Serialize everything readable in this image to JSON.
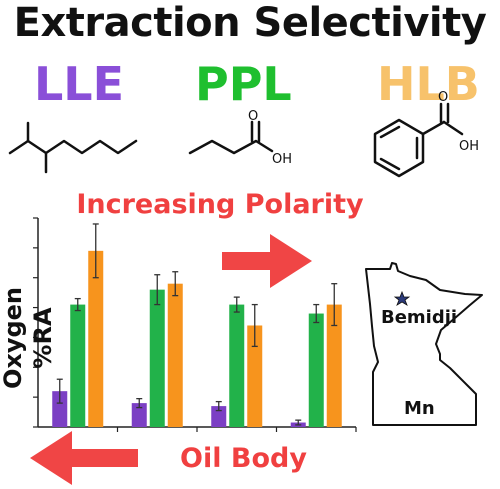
{
  "title": "Extraction Selectivity",
  "methods": [
    {
      "label": "LLE",
      "color": "#8a4fd8",
      "molecule": "branched-alkane"
    },
    {
      "label": "PPL",
      "color": "#1fbf2f",
      "molecule": "butanoic-acid"
    },
    {
      "label": "HLB",
      "color": "#f7c26b",
      "molecule": "benzoic-acid"
    }
  ],
  "molecule_atoms": {
    "oxygen": "O",
    "hydroxyl": "OH"
  },
  "polarity_label": "Increasing Polarity",
  "oil_body_label": "Oil Body",
  "map": {
    "city": "Bemidji",
    "state": "Mn",
    "marker_icon": "star-icon"
  },
  "chart_data": {
    "type": "bar",
    "ylabel": "Oxygen %RA",
    "xlabel": "",
    "categories": [
      "",
      "",
      "",
      ""
    ],
    "ylim": [
      0,
      70
    ],
    "grid": false,
    "series": [
      {
        "name": "LLE",
        "color": "#7b3fc4",
        "values": [
          12,
          8,
          7,
          1.5
        ],
        "errors": [
          4,
          1.5,
          1.5,
          0.8
        ]
      },
      {
        "name": "PPL",
        "color": "#22b24a",
        "values": [
          41,
          46,
          41,
          38
        ],
        "errors": [
          2,
          5,
          2.5,
          3
        ]
      },
      {
        "name": "HLB",
        "color": "#f7941d",
        "values": [
          59,
          48,
          34,
          41
        ],
        "errors": [
          9,
          4,
          7,
          7
        ]
      }
    ]
  }
}
